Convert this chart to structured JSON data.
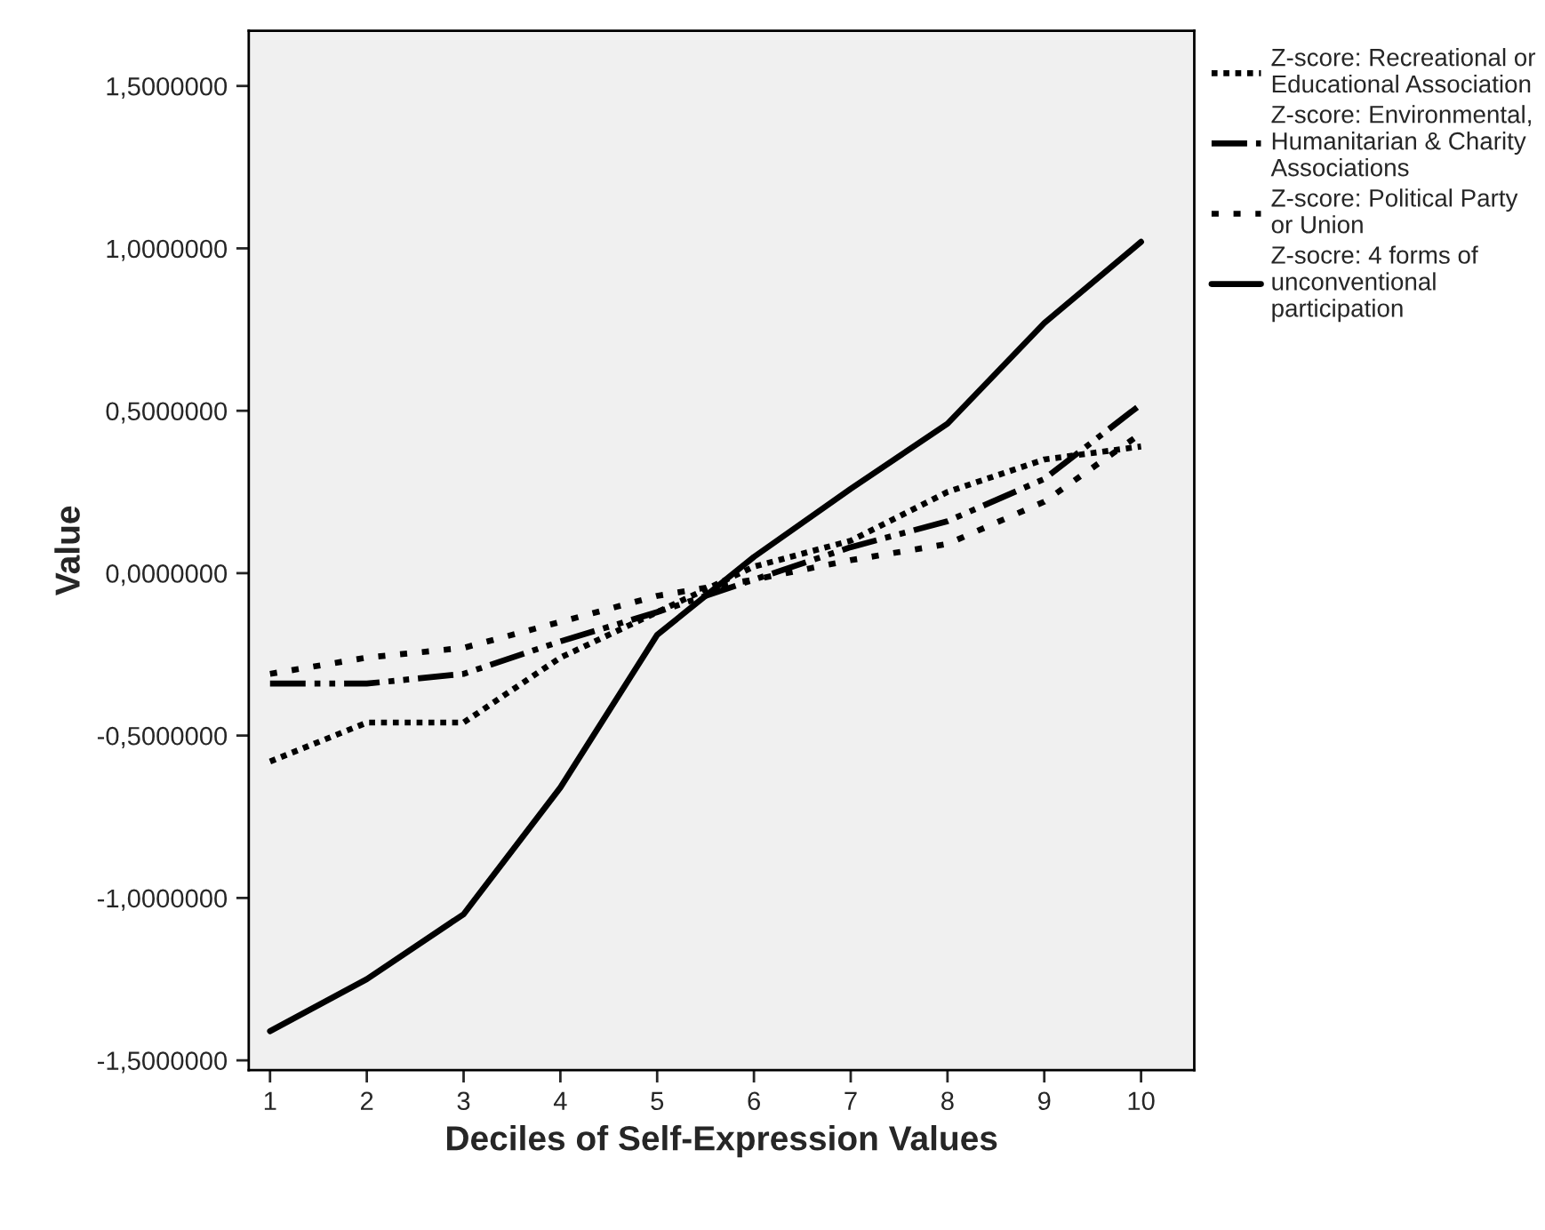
{
  "chart_data": {
    "type": "line",
    "xlabel": "Deciles of Self-Expression Values",
    "ylabel": "Value",
    "x": [
      1,
      2,
      3,
      4,
      5,
      6,
      7,
      8,
      9,
      10
    ],
    "series": [
      {
        "name": "Z-score: Recreational or Educational Association",
        "color": "#000000",
        "line_style": "dotted",
        "values": [
          -0.58,
          -0.46,
          -0.46,
          -0.26,
          -0.12,
          0.02,
          0.1,
          0.25,
          0.35,
          0.39
        ]
      },
      {
        "name": "Z-score: Environmental, Humanitarian & Charity Associations",
        "color": "#000000",
        "line_style": "dash-dot-dot",
        "values": [
          -0.34,
          -0.34,
          -0.31,
          -0.21,
          -0.12,
          -0.02,
          0.08,
          0.16,
          0.29,
          0.52
        ]
      },
      {
        "name": "Z-score: Political Party or Union",
        "color": "#000000",
        "line_style": "dashed",
        "values": [
          -0.31,
          -0.26,
          -0.23,
          -0.15,
          -0.07,
          -0.02,
          0.04,
          0.09,
          0.22,
          0.43
        ]
      },
      {
        "name": "Z-socre: 4 forms of unconventional participation",
        "color": "#000000",
        "line_style": "solid",
        "values": [
          -1.41,
          -1.25,
          -1.05,
          -0.66,
          -0.19,
          0.05,
          0.26,
          0.46,
          0.77,
          1.02
        ]
      }
    ],
    "xlim": [
      0.78,
      10.55
    ],
    "xticks": [
      1,
      2,
      3,
      4,
      5,
      6,
      7,
      8,
      9,
      10
    ],
    "ylim": [
      -1.53,
      1.67
    ],
    "yticks": [
      {
        "value": -1.5,
        "label": "-1,5000000"
      },
      {
        "value": -1.0,
        "label": "-1,0000000"
      },
      {
        "value": -0.5,
        "label": "-0,5000000"
      },
      {
        "value": 0,
        "label": "0,0000000"
      },
      {
        "value": 0.5,
        "label": "0,5000000"
      },
      {
        "value": 1.0,
        "label": "1,0000000"
      },
      {
        "value": 1.5,
        "label": "1,5000000"
      }
    ],
    "grid": false,
    "legend": "right",
    "marker": "none"
  }
}
